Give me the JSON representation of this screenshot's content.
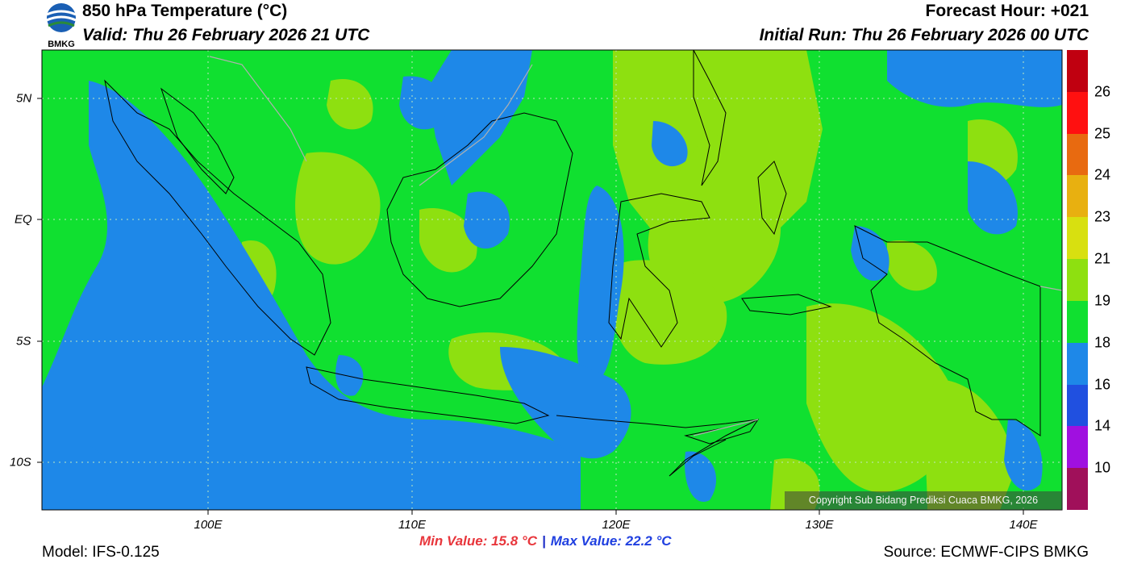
{
  "header": {
    "title": "850 hPa Temperature (°C)",
    "valid": "Valid: Thu 26 February 2026 21 UTC",
    "forecast_hour": "Forecast Hour: +021",
    "initial_run": "Initial Run: Thu 26 February 2026 00 UTC",
    "logo_text": "BMKG"
  },
  "map": {
    "lon_labels": [
      "100E",
      "110E",
      "120E",
      "130E",
      "140E"
    ],
    "lat_labels": [
      "5N",
      "EQ",
      "5S",
      "10S"
    ],
    "copyright": "Copyright Sub Bidang Prediksi Cuaca BMKG, 2026"
  },
  "stats": {
    "min_label": "Min Value: 15.8 °C",
    "separator": "|",
    "max_label": "Max Value: 22.2 °C"
  },
  "footer": {
    "model": "Model: IFS-0.125",
    "source": "Source: ECMWF-CIPS BMKG"
  },
  "colorbar": {
    "labels": [
      "26",
      "25",
      "24",
      "23",
      "21",
      "19",
      "18",
      "16",
      "14",
      "10"
    ],
    "colors": [
      "#c00010",
      "#ff1010",
      "#e86a10",
      "#e8b010",
      "#d8e010",
      "#8ee010",
      "#10e030",
      "#1e88e8",
      "#2050e0",
      "#a010e0",
      "#a0105a"
    ]
  },
  "palette": {
    "green": "#10e030",
    "light_green": "#8ee010",
    "blue": "#1e88e8"
  }
}
